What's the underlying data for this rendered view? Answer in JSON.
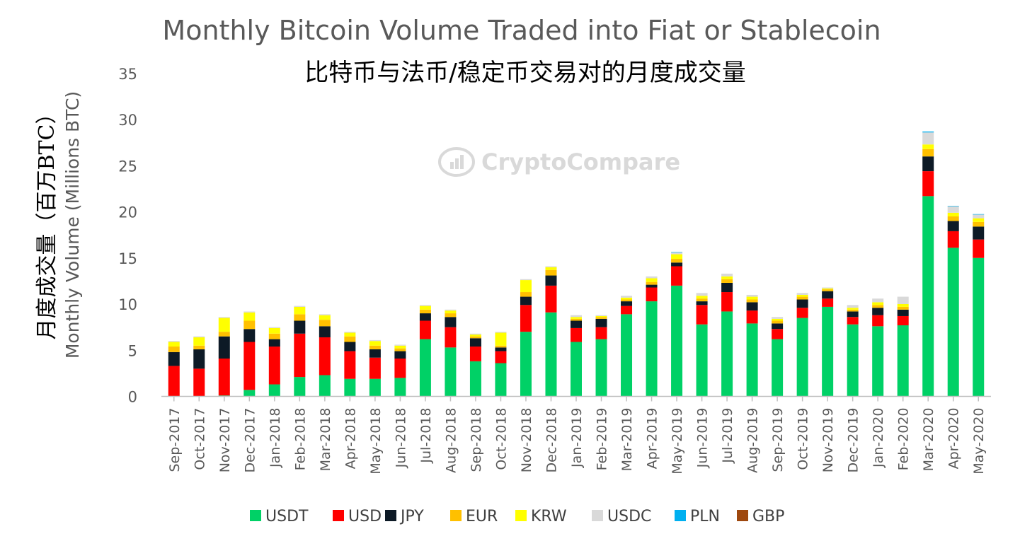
{
  "chart_data": {
    "type": "bar",
    "stacked": true,
    "title": "Monthly Bitcoin Volume Traded into Fiat or Stablecoin",
    "subtitle": "比特币与法币/稳定币交易对的月度成交量",
    "ylabel_cn": "月度成交量（百万BTC）",
    "ylabel": "Monthly Volume (Millions BTC)",
    "ylim": [
      0,
      35
    ],
    "yticks": [
      0,
      5,
      10,
      15,
      20,
      25,
      30,
      35
    ],
    "watermark": "CryptoCompare",
    "legend_position": "bottom",
    "categories": [
      "Sep-2017",
      "Oct-2017",
      "Nov-2017",
      "Dec-2017",
      "Jan-2018",
      "Feb-2018",
      "Mar-2018",
      "Apr-2018",
      "May-2018",
      "Jun-2018",
      "Jul-2018",
      "Aug-2018",
      "Sep-2018",
      "Oct-2018",
      "Nov-2018",
      "Dec-2018",
      "Jan-2019",
      "Feb-2019",
      "Mar-2019",
      "Apr-2019",
      "May-2019",
      "Jun-2019",
      "Jul-2019",
      "Aug-2019",
      "Sep-2019",
      "Oct-2019",
      "Nov-2019",
      "Dec-2019",
      "Jan-2020",
      "Feb-2020",
      "Mar-2020",
      "Apr-2020",
      "May-2020"
    ],
    "series": [
      {
        "name": "USDT",
        "color": "#00d166",
        "values": [
          0,
          0,
          0.1,
          0.7,
          1.3,
          2.1,
          2.3,
          1.9,
          1.9,
          2.0,
          6.2,
          5.3,
          3.8,
          3.6,
          7.0,
          9.1,
          5.9,
          6.2,
          8.9,
          10.3,
          12.0,
          7.8,
          9.2,
          7.9,
          6.2,
          8.5,
          9.7,
          7.8,
          7.6,
          7.7,
          21.7,
          16.1,
          15.0
        ]
      },
      {
        "name": "USD",
        "color": "#ff0000",
        "values": [
          3.3,
          3.0,
          4.0,
          5.2,
          4.1,
          4.7,
          4.1,
          3.0,
          2.3,
          2.1,
          2.0,
          2.2,
          1.6,
          1.3,
          2.9,
          2.9,
          1.5,
          1.3,
          0.9,
          1.5,
          2.1,
          2.1,
          2.1,
          1.4,
          1.1,
          1.1,
          0.9,
          0.8,
          1.2,
          1.0,
          2.7,
          1.8,
          2.0
        ]
      },
      {
        "name": "JPY",
        "color": "#0d1a26",
        "values": [
          1.5,
          2.1,
          2.4,
          1.4,
          0.8,
          1.4,
          1.2,
          1.0,
          0.9,
          0.8,
          0.8,
          1.1,
          0.9,
          0.4,
          0.9,
          1.1,
          0.8,
          0.9,
          0.5,
          0.3,
          0.4,
          0.4,
          1.0,
          0.9,
          0.6,
          0.9,
          0.8,
          0.6,
          0.8,
          0.7,
          1.6,
          1.1,
          1.4
        ]
      },
      {
        "name": "EUR",
        "color": "#ffc000",
        "values": [
          0.6,
          0.4,
          0.5,
          0.9,
          0.6,
          0.7,
          0.7,
          0.6,
          0.4,
          0.3,
          0.4,
          0.4,
          0.2,
          0.2,
          0.5,
          0.6,
          0.2,
          0.2,
          0.2,
          0.3,
          0.4,
          0.3,
          0.4,
          0.3,
          0.3,
          0.3,
          0.2,
          0.2,
          0.3,
          0.3,
          0.8,
          0.5,
          0.5
        ]
      },
      {
        "name": "KRW",
        "color": "#ffff00",
        "values": [
          0.5,
          0.9,
          1.5,
          0.9,
          0.6,
          0.8,
          0.5,
          0.4,
          0.5,
          0.3,
          0.4,
          0.3,
          0.2,
          1.4,
          1.3,
          0.3,
          0.2,
          0.1,
          0.2,
          0.4,
          0.5,
          0.3,
          0.3,
          0.3,
          0.2,
          0.2,
          0.1,
          0.2,
          0.3,
          0.3,
          0.5,
          0.4,
          0.4
        ]
      },
      {
        "name": "USDC",
        "color": "#d9d9d9",
        "values": [
          0.1,
          0.1,
          0.1,
          0.1,
          0.1,
          0.1,
          0.1,
          0.1,
          0.1,
          0.1,
          0.1,
          0.1,
          0.1,
          0.1,
          0.1,
          0.1,
          0.2,
          0.1,
          0.2,
          0.2,
          0.2,
          0.3,
          0.3,
          0.2,
          0.2,
          0.2,
          0.1,
          0.3,
          0.4,
          0.8,
          1.3,
          0.7,
          0.4
        ]
      },
      {
        "name": "PLN",
        "color": "#00b0f0",
        "values": [
          0,
          0,
          0,
          0,
          0,
          0,
          0,
          0,
          0,
          0,
          0,
          0,
          0,
          0,
          0,
          0,
          0,
          0,
          0,
          0,
          0.05,
          0,
          0,
          0,
          0,
          0,
          0,
          0,
          0,
          0,
          0.1,
          0.05,
          0.05
        ]
      },
      {
        "name": "GBP",
        "color": "#9e480e",
        "values": [
          0,
          0,
          0,
          0,
          0,
          0,
          0,
          0,
          0,
          0,
          0,
          0,
          0,
          0,
          0,
          0,
          0,
          0,
          0,
          0,
          0,
          0,
          0,
          0,
          0,
          0,
          0,
          0,
          0,
          0,
          0,
          0,
          0
        ]
      }
    ]
  }
}
